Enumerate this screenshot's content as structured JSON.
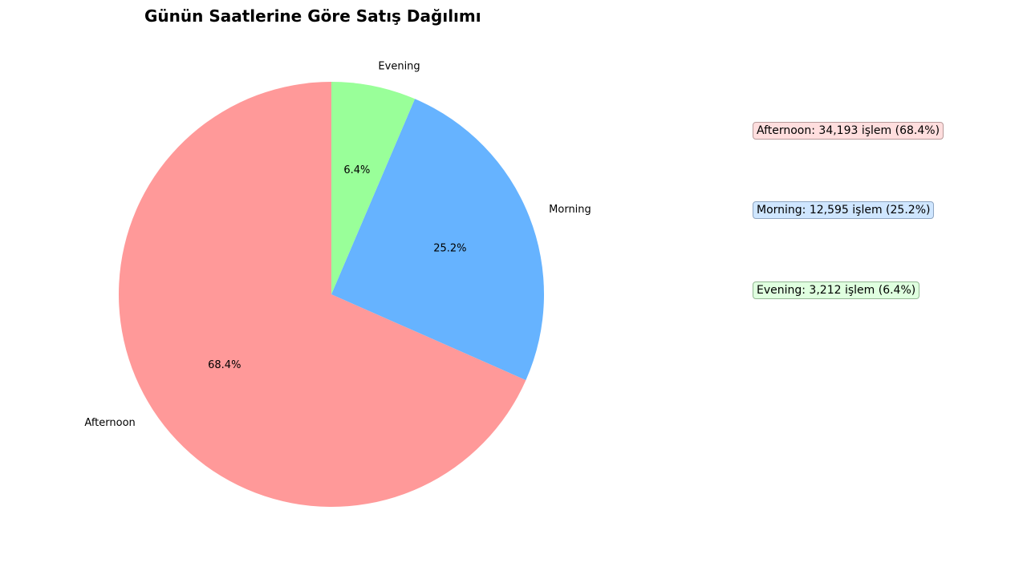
{
  "chart_data": {
    "type": "pie",
    "title": "Günün Saatlerine Göre Satış Dağılımı",
    "slices": [
      {
        "name": "Afternoon",
        "value": 34193,
        "percent_label": "68.4%",
        "color": "#ff9999"
      },
      {
        "name": "Morning",
        "value": 12595,
        "percent_label": "25.2%",
        "color": "#66b3ff"
      },
      {
        "name": "Evening",
        "value": 3212,
        "percent_label": "6.4%",
        "color": "#99ff99"
      }
    ],
    "info_boxes": [
      {
        "text": "Afternoon: 34,193 işlem (68.4%)",
        "bg": "#ffdede",
        "border": "#b89a9a"
      },
      {
        "text": "Morning: 12,595 işlem (25.2%)",
        "bg": "#cfe6ff",
        "border": "#8fa6c2"
      },
      {
        "text": "Evening: 3,212 işlem (6.4%)",
        "bg": "#dfffdf",
        "border": "#93b893"
      }
    ]
  }
}
